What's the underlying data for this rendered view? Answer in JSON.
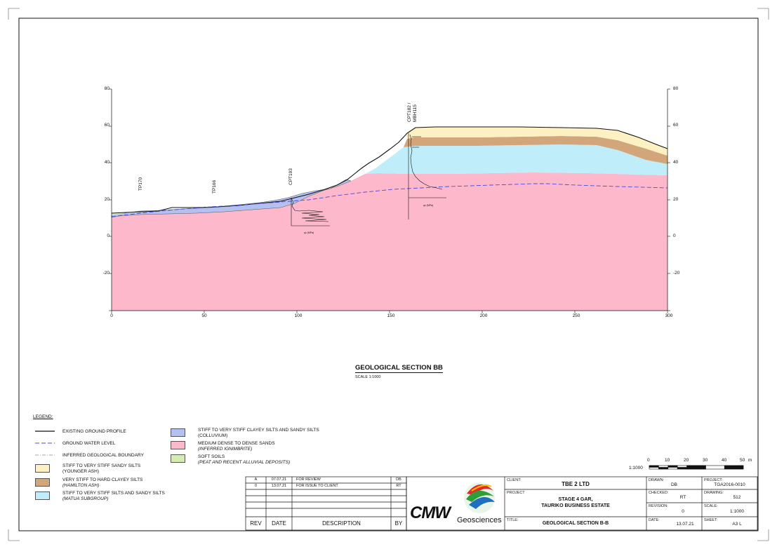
{
  "section": {
    "title": "GEOLOGICAL SECTION BB",
    "scale": "SCALE 1:1000"
  },
  "axes": {
    "x_ticks": [
      "0",
      "50",
      "100",
      "150",
      "200",
      "250",
      "300"
    ],
    "y_ticks": [
      "80",
      "60",
      "40",
      "20",
      "0",
      "-20"
    ]
  },
  "boreholes": {
    "tp170": "TP170",
    "tp166": "TP166",
    "cpt193": "CPT193",
    "cpt182": "CPT182 /",
    "mbh115": "MBH115",
    "qc_label": "qc (MPa)"
  },
  "legend": {
    "heading": "LEGEND:",
    "items": [
      {
        "label": "EXISTING GROUND PROFILE",
        "sub": ""
      },
      {
        "label": "GROUND WATER LEVEL",
        "sub": ""
      },
      {
        "label": "INFERRED GEOLOGICAL BOUNDARY",
        "sub": ""
      },
      {
        "label": "STIFF TO VERY STIFF SANDY SILTS",
        "sub": "(YOUNGER ASH)",
        "color": "#fdf1c3"
      },
      {
        "label": "VERY STIFF TO HARD CLAYEY SILTS",
        "sub": "(HAMILTON ASH)",
        "color": "#d2a67a"
      },
      {
        "label": "STIFF TO VERY STIFF SILTS AND SANDY SILTS",
        "sub": "(MATUA SUBGROUP)",
        "color": "#bfeefa"
      },
      {
        "label": "STIFF TO VERY STIFF CLAYEY SILTS AND SANDY SILTS",
        "sub": "(COLLUVIUM)",
        "color": "#b4c0f0"
      },
      {
        "label": "MEDIUM DENSE TO DENSE SANDS",
        "sub": "(INFERRED IGNIMBRITE)",
        "color": "#fdb9cb"
      },
      {
        "label": "SOFT SOILS",
        "sub": "(PEAT AND RECENT ALLUVIAL DEPOSITS)",
        "color": "#d6eab4"
      }
    ]
  },
  "scale_bar": {
    "ratio": "1:1000",
    "labels": [
      "0",
      "10",
      "20",
      "30",
      "40",
      "50"
    ],
    "unit": "m"
  },
  "revisions": {
    "rows": [
      {
        "rev": "A",
        "date": "07.07.21",
        "desc": "FOR REVIEW",
        "by": "DB"
      },
      {
        "rev": "0",
        "date": "13.07.21",
        "desc": "FOR ISSUE TO CLIENT",
        "by": "RT"
      }
    ],
    "headers": {
      "rev": "REV",
      "date": "DATE",
      "desc": "DESCRIPTION",
      "by": "BY"
    }
  },
  "logo": {
    "mark": "CMW",
    "text": "Geosciences"
  },
  "title_block": {
    "client_label": "CLIENT:",
    "client": "TBE 2 LTD",
    "project_label": "PROJECT",
    "project_line1": "STAGE 4 GAR,",
    "project_line2": "TAURIKO BUSINESS ESTATE",
    "title_label": "TITLE:",
    "title": "GEOLOGICAL SECTION B-B",
    "drawn_label": "DRAWN:",
    "drawn": "DB",
    "checked_label": "CHECKED:",
    "checked": "RT",
    "revision_label": "REVISION:",
    "revision": "0",
    "date_label": "DATE:",
    "date": "13.07.21",
    "projno_label": "PROJECT:",
    "projno": "TGA2016-0010",
    "drawing_label": "DRAWING:",
    "drawing": "512",
    "scale_label": "SCALE:",
    "scale": "1:1000",
    "sheet_label": "SHEET:",
    "sheet": "A3 L"
  }
}
